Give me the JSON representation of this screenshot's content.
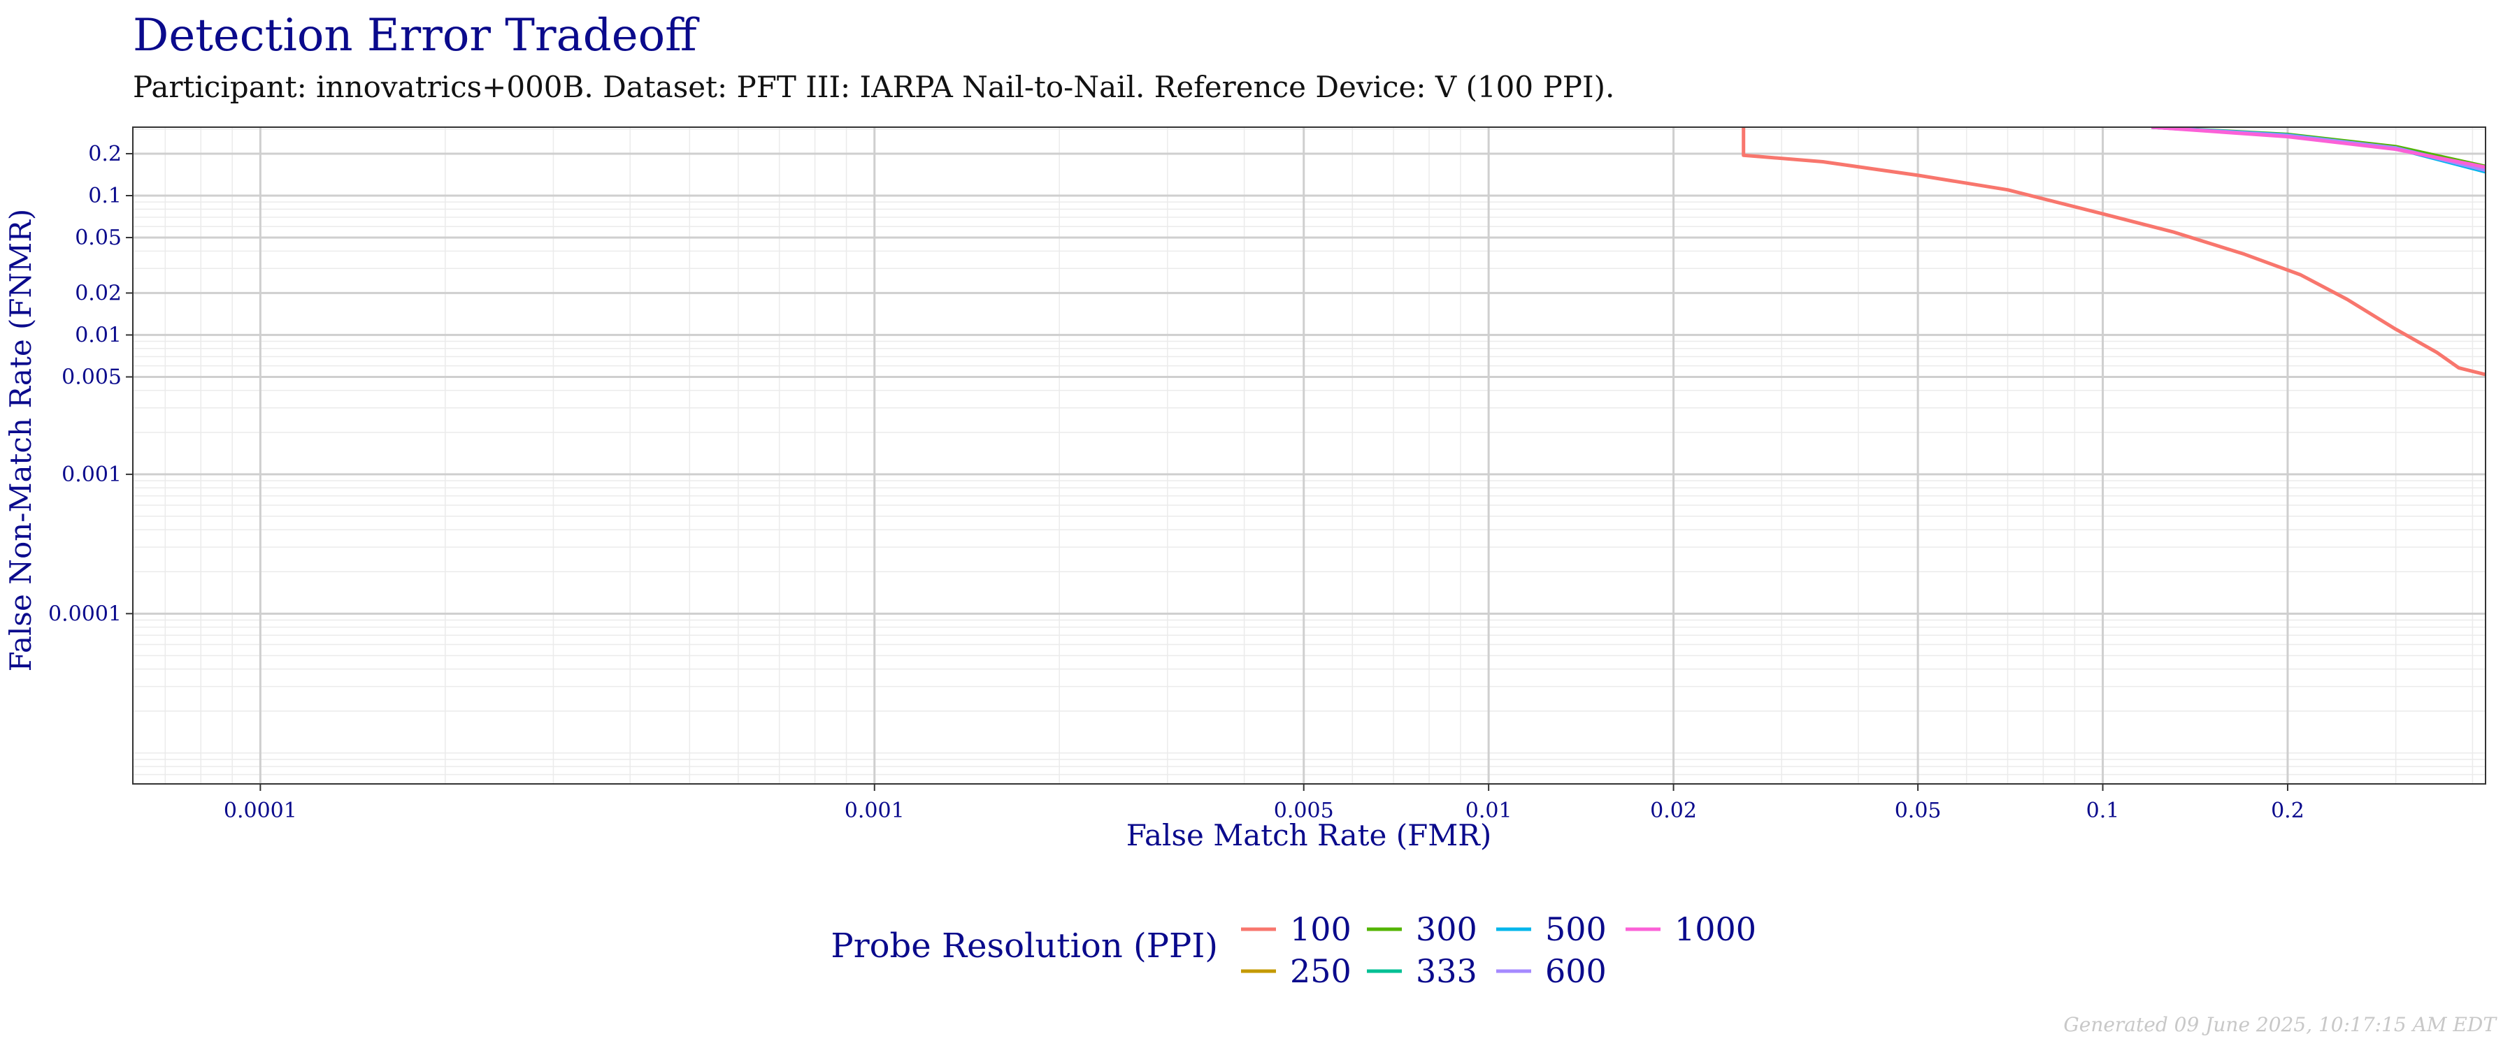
{
  "chart_data": {
    "type": "line",
    "title": "Detection Error Tradeoff",
    "subtitle": "Participant: innovatrics+000B. Dataset: PFT III: IARPA Nail-to-Nail. Reference Device: V (100 PPI).",
    "xlabel": "False Match Rate (FMR)",
    "ylabel": "False Non-Match Rate (FNMR)",
    "x_scale": "log",
    "y_scale": "log",
    "xlim": [
      6.2e-05,
      0.42
    ],
    "ylim": [
      6e-06,
      0.31
    ],
    "grid": true,
    "x_ticks": [
      {
        "value": 0.0001,
        "label": "0.0001"
      },
      {
        "value": 0.001,
        "label": "0.001"
      },
      {
        "value": 0.005,
        "label": "0.005"
      },
      {
        "value": 0.01,
        "label": "0.01"
      },
      {
        "value": 0.02,
        "label": "0.02"
      },
      {
        "value": 0.05,
        "label": "0.05"
      },
      {
        "value": 0.1,
        "label": "0.1"
      },
      {
        "value": 0.2,
        "label": "0.2"
      }
    ],
    "y_ticks": [
      {
        "value": 0.2,
        "label": "0.2"
      },
      {
        "value": 0.1,
        "label": "0.1"
      },
      {
        "value": 0.05,
        "label": "0.05"
      },
      {
        "value": 0.02,
        "label": "0.02"
      },
      {
        "value": 0.01,
        "label": "0.01"
      },
      {
        "value": 0.005,
        "label": "0.005"
      },
      {
        "value": 0.001,
        "label": "0.001"
      },
      {
        "value": 0.0001,
        "label": "0.0001"
      }
    ],
    "legend": {
      "title": "Probe Resolution (PPI)",
      "position": "bottom"
    },
    "series": [
      {
        "name": "100",
        "color": "#F8766D",
        "points": [
          [
            0.026,
            0.31
          ],
          [
            0.026,
            0.195
          ],
          [
            0.035,
            0.175
          ],
          [
            0.05,
            0.14
          ],
          [
            0.07,
            0.11
          ],
          [
            0.1,
            0.074
          ],
          [
            0.13,
            0.055
          ],
          [
            0.17,
            0.038
          ],
          [
            0.21,
            0.027
          ],
          [
            0.25,
            0.018
          ],
          [
            0.3,
            0.011
          ],
          [
            0.35,
            0.0075
          ],
          [
            0.38,
            0.0058
          ],
          [
            0.42,
            0.0052
          ]
        ]
      },
      {
        "name": "250",
        "color": "#C49A00",
        "points": [
          [
            0.12,
            0.31
          ],
          [
            0.2,
            0.27
          ],
          [
            0.3,
            0.22
          ],
          [
            0.42,
            0.158
          ]
        ]
      },
      {
        "name": "300",
        "color": "#53B400",
        "points": [
          [
            0.12,
            0.31
          ],
          [
            0.2,
            0.275
          ],
          [
            0.3,
            0.225
          ],
          [
            0.42,
            0.162
          ]
        ]
      },
      {
        "name": "333",
        "color": "#00C094",
        "points": [
          [
            0.12,
            0.31
          ],
          [
            0.2,
            0.272
          ],
          [
            0.3,
            0.22
          ],
          [
            0.42,
            0.155
          ]
        ]
      },
      {
        "name": "500",
        "color": "#00B6EB",
        "points": [
          [
            0.12,
            0.31
          ],
          [
            0.2,
            0.272
          ],
          [
            0.3,
            0.218
          ],
          [
            0.42,
            0.148
          ]
        ]
      },
      {
        "name": "600",
        "color": "#A58AFF",
        "points": [
          [
            0.12,
            0.31
          ],
          [
            0.2,
            0.27
          ],
          [
            0.3,
            0.22
          ],
          [
            0.42,
            0.152
          ]
        ]
      },
      {
        "name": "1000",
        "color": "#FB61D7",
        "points": [
          [
            0.12,
            0.31
          ],
          [
            0.2,
            0.265
          ],
          [
            0.3,
            0.215
          ],
          [
            0.42,
            0.16
          ]
        ]
      }
    ]
  },
  "footer": "Generated 09 June 2025, 10:17:15 AM EDT"
}
